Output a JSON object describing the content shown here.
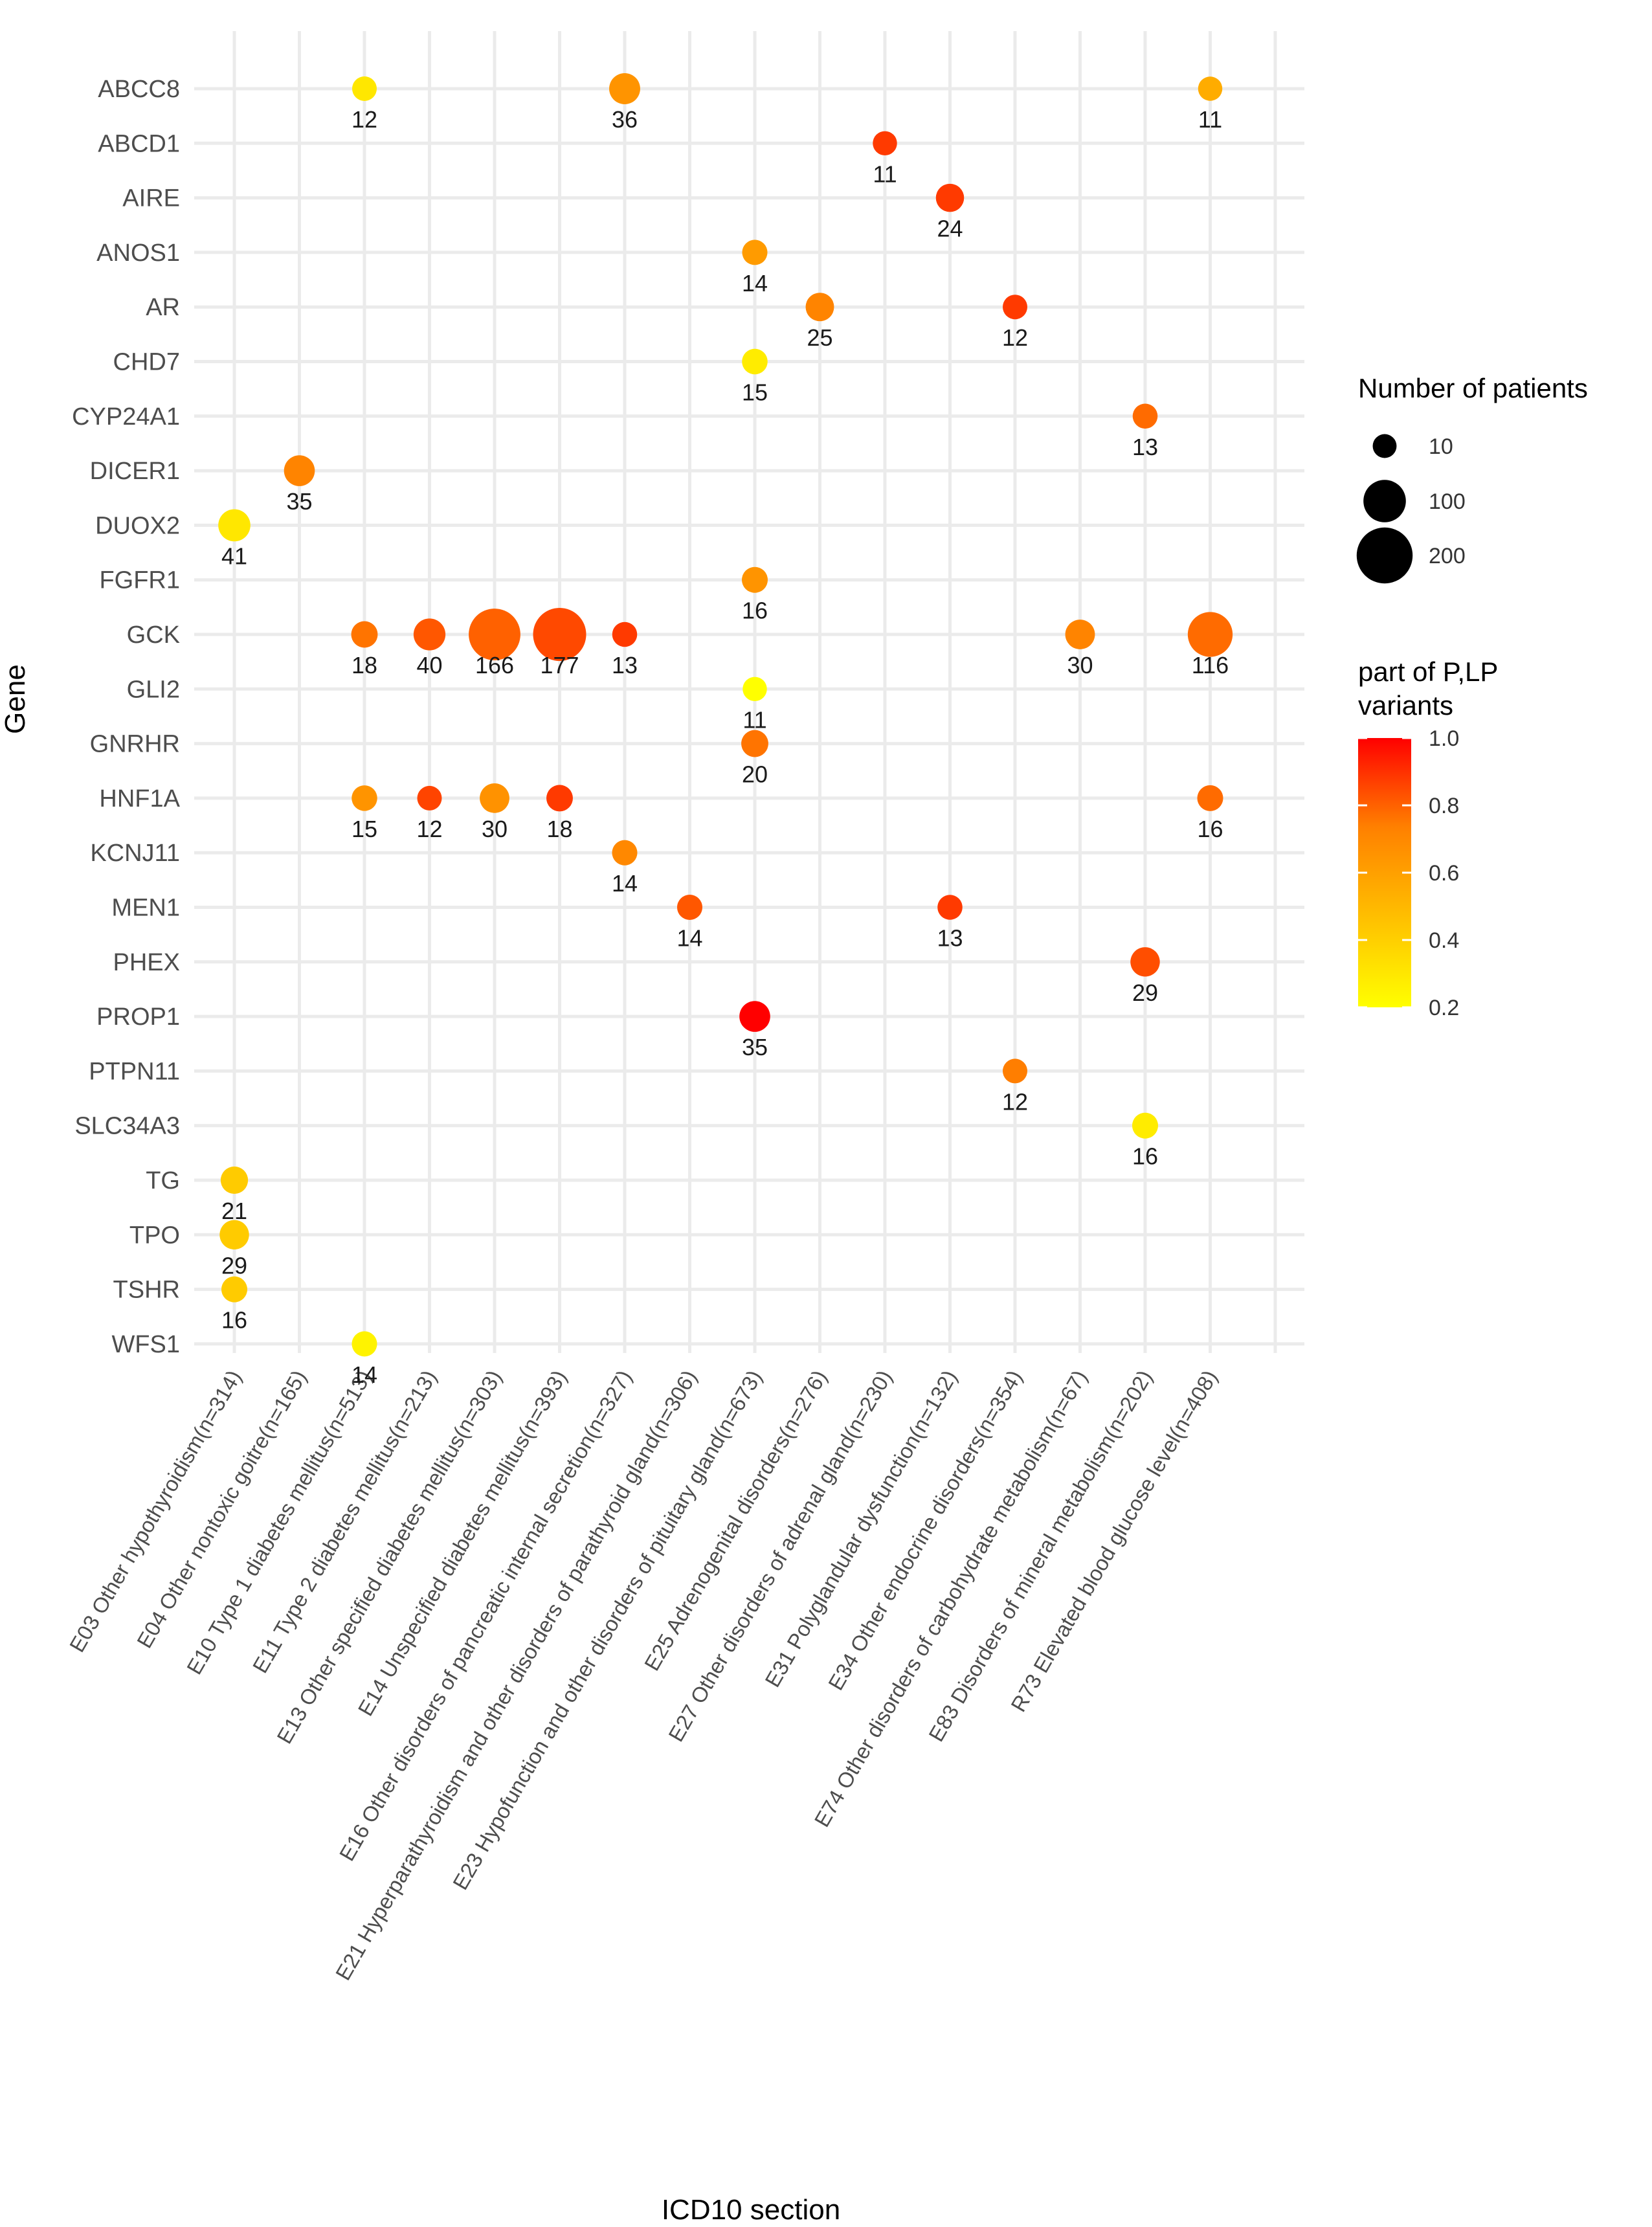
{
  "chart_data": {
    "type": "scatter",
    "xlabel": "ICD10 section",
    "ylabel": "Gene",
    "grid": true,
    "categories_x": [
      "E03 Other hypothyroidism(n=314)",
      "E04 Other nontoxic goitre(n=165)",
      "E10 Type 1 diabetes mellitus(n=513)",
      "E11 Type 2 diabetes mellitus(n=213)",
      "E13 Other specified diabetes mellitus(n=303)",
      "E14 Unspecified diabetes mellitus(n=393)",
      "E16 Other disorders of pancreatic internal secretion(n=327)",
      "E21 Hyperparathyroidism and other disorders of parathyroid gland(n=306)",
      "E23 Hypofunction and other disorders of pituitary gland(n=673)",
      "E25 Adrenogenital disorders(n=276)",
      "E27 Other disorders of adrenal gland(n=230)",
      "E31 Polyglandular dysfunction(n=132)",
      "E34 Other endocrine disorders(n=354)",
      "E74 Other disorders of carbohydrate metabolism(n=67)",
      "E83 Disorders of mineral metabolism(n=202)",
      "R73 Elevated blood glucose level(n=408)"
    ],
    "categories_y": [
      "ABCC8",
      "ABCD1",
      "AIRE",
      "ANOS1",
      "AR",
      "CHD7",
      "CYP24A1",
      "DICER1",
      "DUOX2",
      "FGFR1",
      "GCK",
      "GLI2",
      "GNRHR",
      "HNF1A",
      "KCNJ11",
      "MEN1",
      "PHEX",
      "PROP1",
      "PTPN11",
      "SLC34A3",
      "TG",
      "TPO",
      "TSHR",
      "WFS1"
    ],
    "points": [
      {
        "gene": "ABCC8",
        "x": 2,
        "n": 12,
        "frac": 0.3
      },
      {
        "gene": "ABCC8",
        "x": 6,
        "n": 36,
        "frac": 0.65
      },
      {
        "gene": "ABCC8",
        "x": 15,
        "n": 11,
        "frac": 0.55
      },
      {
        "gene": "ABCD1",
        "x": 10,
        "n": 11,
        "frac": 0.88
      },
      {
        "gene": "AIRE",
        "x": 11,
        "n": 24,
        "frac": 0.88
      },
      {
        "gene": "ANOS1",
        "x": 8,
        "n": 14,
        "frac": 0.62
      },
      {
        "gene": "AR",
        "x": 9,
        "n": 25,
        "frac": 0.72
      },
      {
        "gene": "AR",
        "x": 12,
        "n": 12,
        "frac": 0.88
      },
      {
        "gene": "CHD7",
        "x": 8,
        "n": 15,
        "frac": 0.28
      },
      {
        "gene": "CYP24A1",
        "x": 14,
        "n": 13,
        "frac": 0.78
      },
      {
        "gene": "DICER1",
        "x": 1,
        "n": 35,
        "frac": 0.72
      },
      {
        "gene": "DUOX2",
        "x": 0,
        "n": 41,
        "frac": 0.3
      },
      {
        "gene": "FGFR1",
        "x": 8,
        "n": 16,
        "frac": 0.65
      },
      {
        "gene": "GCK",
        "x": 2,
        "n": 18,
        "frac": 0.76
      },
      {
        "gene": "GCK",
        "x": 3,
        "n": 40,
        "frac": 0.82
      },
      {
        "gene": "GCK",
        "x": 4,
        "n": 166,
        "frac": 0.8
      },
      {
        "gene": "GCK",
        "x": 5,
        "n": 177,
        "frac": 0.85
      },
      {
        "gene": "GCK",
        "x": 6,
        "n": 13,
        "frac": 0.88
      },
      {
        "gene": "GCK",
        "x": 13,
        "n": 30,
        "frac": 0.72
      },
      {
        "gene": "GCK",
        "x": 15,
        "n": 116,
        "frac": 0.78
      },
      {
        "gene": "GLI2",
        "x": 8,
        "n": 11,
        "frac": 0.2
      },
      {
        "gene": "GNRHR",
        "x": 8,
        "n": 20,
        "frac": 0.76
      },
      {
        "gene": "HNF1A",
        "x": 2,
        "n": 15,
        "frac": 0.65
      },
      {
        "gene": "HNF1A",
        "x": 3,
        "n": 12,
        "frac": 0.86
      },
      {
        "gene": "HNF1A",
        "x": 4,
        "n": 30,
        "frac": 0.66
      },
      {
        "gene": "HNF1A",
        "x": 5,
        "n": 18,
        "frac": 0.88
      },
      {
        "gene": "HNF1A",
        "x": 15,
        "n": 16,
        "frac": 0.78
      },
      {
        "gene": "KCNJ11",
        "x": 6,
        "n": 14,
        "frac": 0.7
      },
      {
        "gene": "MEN1",
        "x": 7,
        "n": 14,
        "frac": 0.82
      },
      {
        "gene": "MEN1",
        "x": 11,
        "n": 13,
        "frac": 0.88
      },
      {
        "gene": "PHEX",
        "x": 14,
        "n": 29,
        "frac": 0.84
      },
      {
        "gene": "PROP1",
        "x": 8,
        "n": 35,
        "frac": 1.0
      },
      {
        "gene": "PTPN11",
        "x": 12,
        "n": 12,
        "frac": 0.74
      },
      {
        "gene": "SLC34A3",
        "x": 14,
        "n": 16,
        "frac": 0.28
      },
      {
        "gene": "TG",
        "x": 0,
        "n": 21,
        "frac": 0.42
      },
      {
        "gene": "TPO",
        "x": 0,
        "n": 29,
        "frac": 0.42
      },
      {
        "gene": "TSHR",
        "x": 0,
        "n": 16,
        "frac": 0.42
      },
      {
        "gene": "WFS1",
        "x": 2,
        "n": 14,
        "frac": 0.25
      }
    ],
    "size_legend": {
      "title": "Number of patients",
      "values": [
        10,
        100,
        200
      ],
      "labels": [
        "10",
        "100",
        "200"
      ]
    },
    "color_legend": {
      "title_line1": "part of P,LP",
      "title_line2": "variants",
      "range": [
        0.2,
        1.0
      ],
      "ticks": [
        1.0,
        0.8,
        0.6,
        0.4,
        0.2
      ],
      "tick_labels": [
        "1.0",
        "0.8",
        "0.6",
        "0.4",
        "0.2"
      ],
      "low_color": "#ffff00",
      "high_color": "#ff0000"
    }
  }
}
